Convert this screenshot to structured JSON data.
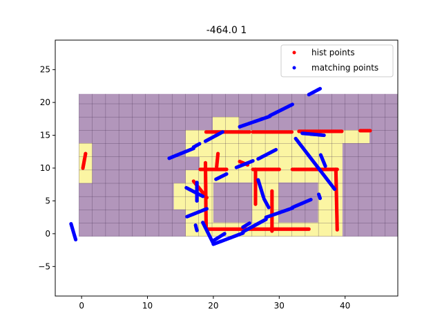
{
  "chart_data": {
    "type": "scatter",
    "title": "-464.0 1",
    "xlabel": "",
    "ylabel": "",
    "xlim": [
      -4,
      48
    ],
    "ylim": [
      -9.5,
      29.5
    ],
    "x_ticks": [
      0,
      10,
      20,
      30,
      40
    ],
    "y_ticks": [
      -5,
      0,
      5,
      10,
      15,
      20,
      25
    ],
    "legend_position": "top-right",
    "colors": {
      "occupied_cell": "#b296bb",
      "free_cell": "#fbf5a3",
      "grid_line": "#3f2a4c",
      "free_grid_line": "#efe77a",
      "hist": "#ff0000",
      "matching": "#0000ff"
    },
    "occupancy_grid": {
      "x_range": [
        -0.4,
        48.2
      ],
      "y_range": [
        -0.4,
        21.3
      ],
      "cell_size": 2.02,
      "free_regions": [
        [
          -0.4,
          7.7,
          1.6,
          13.8
        ],
        [
          14.0,
          3.7,
          16.0,
          7.7
        ],
        [
          15.8,
          -0.4,
          39.6,
          15.8
        ],
        [
          19.9,
          15.8,
          23.9,
          17.8
        ],
        [
          39.6,
          13.8,
          43.7,
          15.8
        ]
      ],
      "occupied_regions": [
        [
          15.8,
          9.7,
          17.9,
          11.7
        ],
        [
          20.0,
          1.7,
          25.9,
          7.8
        ],
        [
          29.9,
          1.7,
          35.9,
          7.8
        ]
      ]
    },
    "series": [
      {
        "name": "hist points",
        "color": "#ff0000",
        "segments": [
          [
            [
              0.2,
              10.0
            ],
            [
              0.6,
              12.2
            ]
          ],
          [
            [
              18.9,
              15.5
            ],
            [
              25.5,
              15.5
            ]
          ],
          [
            [
              26.0,
              15.5
            ],
            [
              31.9,
              15.5
            ]
          ],
          [
            [
              33.0,
              15.6
            ],
            [
              39.5,
              15.6
            ]
          ],
          [
            [
              42.3,
              15.7
            ],
            [
              43.8,
              15.7
            ]
          ],
          [
            [
              18.0,
              9.8
            ],
            [
              22.0,
              9.8
            ]
          ],
          [
            [
              26.0,
              9.8
            ],
            [
              30.0,
              9.8
            ]
          ],
          [
            [
              32.0,
              9.8
            ],
            [
              35.0,
              9.8
            ]
          ],
          [
            [
              35.0,
              9.8
            ],
            [
              38.8,
              9.8
            ]
          ],
          [
            [
              18.8,
              10.8
            ],
            [
              18.9,
              1.0
            ]
          ],
          [
            [
              38.6,
              9.8
            ],
            [
              38.8,
              0.6
            ]
          ],
          [
            [
              19.0,
              0.7
            ],
            [
              34.5,
              0.7
            ]
          ],
          [
            [
              26.4,
              9.8
            ],
            [
              26.4,
              4.5
            ]
          ],
          [
            [
              28.9,
              6.5
            ],
            [
              28.9,
              0.4
            ]
          ],
          [
            [
              20.5,
              10.2
            ],
            [
              20.7,
              12.2
            ]
          ],
          [
            [
              17.0,
              8.0
            ],
            [
              19.0,
              5.5
            ]
          ],
          [
            [
              24.0,
              11.0
            ],
            [
              25.2,
              10.5
            ]
          ]
        ]
      },
      {
        "name": "matching points",
        "color": "#0000ff",
        "segments": [
          [
            [
              -1.6,
              1.5
            ],
            [
              -0.9,
              -0.9
            ]
          ],
          [
            [
              13.3,
              11.5
            ],
            [
              17.0,
              13.0
            ]
          ],
          [
            [
              17.0,
              13.2
            ],
            [
              17.9,
              13.7
            ]
          ],
          [
            [
              18.8,
              14.1
            ],
            [
              21.4,
              15.5
            ]
          ],
          [
            [
              24.0,
              16.3
            ],
            [
              28.6,
              17.9
            ]
          ],
          [
            [
              28.6,
              18.0
            ],
            [
              32.0,
              19.7
            ]
          ],
          [
            [
              34.5,
              21.2
            ],
            [
              36.2,
              22.1
            ]
          ],
          [
            [
              26.8,
              11.4
            ],
            [
              29.5,
              12.8
            ]
          ],
          [
            [
              20.4,
              8.3
            ],
            [
              22.0,
              9.1
            ]
          ],
          [
            [
              23.5,
              10.1
            ],
            [
              26.0,
              11.1
            ]
          ],
          [
            [
              32.5,
              14.5
            ],
            [
              38.4,
              6.8
            ]
          ],
          [
            [
              33.5,
              15.3
            ],
            [
              36.8,
              15.0
            ]
          ],
          [
            [
              36.3,
              12.0
            ],
            [
              37.0,
              10.3
            ]
          ],
          [
            [
              16.0,
              2.6
            ],
            [
              19.0,
              3.8
            ]
          ],
          [
            [
              17.3,
              1.3
            ],
            [
              17.5,
              0.5
            ]
          ],
          [
            [
              15.9,
              7.0
            ],
            [
              18.4,
              5.7
            ]
          ],
          [
            [
              17.5,
              7.8
            ],
            [
              17.5,
              5.0
            ]
          ],
          [
            [
              20.0,
              -1.6
            ],
            [
              24.5,
              0.1
            ]
          ],
          [
            [
              24.5,
              0.3
            ],
            [
              28.0,
              2.2
            ]
          ],
          [
            [
              28.0,
              2.5
            ],
            [
              32.0,
              3.9
            ]
          ],
          [
            [
              32.0,
              4.0
            ],
            [
              34.8,
              5.2
            ]
          ],
          [
            [
              20.0,
              -1.5
            ],
            [
              18.4,
              1.7
            ]
          ],
          [
            [
              20.1,
              -1.0
            ],
            [
              21.7,
              0.0
            ]
          ],
          [
            [
              26.8,
              8.2
            ],
            [
              27.6,
              5.6
            ]
          ],
          [
            [
              27.7,
              5.3
            ],
            [
              28.4,
              4.0
            ]
          ],
          [
            [
              24.5,
              1.0
            ],
            [
              25.5,
              1.6
            ]
          ],
          [
            [
              36.0,
              6.0
            ],
            [
              36.2,
              5.4
            ]
          ]
        ]
      }
    ]
  }
}
